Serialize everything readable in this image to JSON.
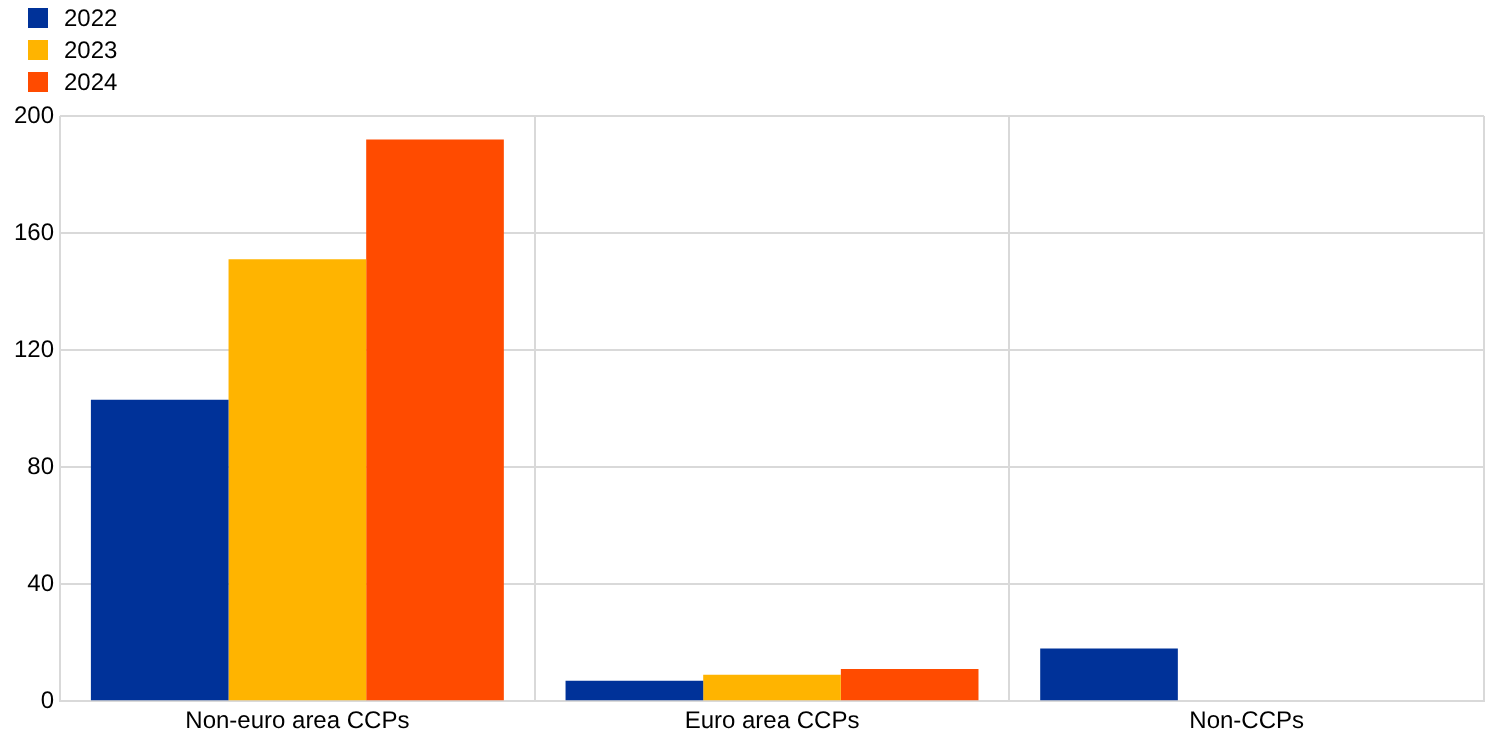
{
  "chart_data": {
    "type": "bar",
    "categories": [
      "Non-euro area CCPs",
      "Euro area CCPs",
      "Non-CCPs"
    ],
    "series": [
      {
        "name": "2022",
        "color": "#003299",
        "values": [
          103,
          7,
          18
        ]
      },
      {
        "name": "2023",
        "color": "#ffb400",
        "values": [
          151,
          9,
          null
        ]
      },
      {
        "name": "2024",
        "color": "#ff4b00",
        "values": [
          192,
          11,
          null
        ]
      }
    ],
    "ylim": [
      0,
      200
    ],
    "yticks": [
      0,
      40,
      80,
      120,
      160,
      200
    ],
    "grid": true,
    "legend": "top left"
  }
}
